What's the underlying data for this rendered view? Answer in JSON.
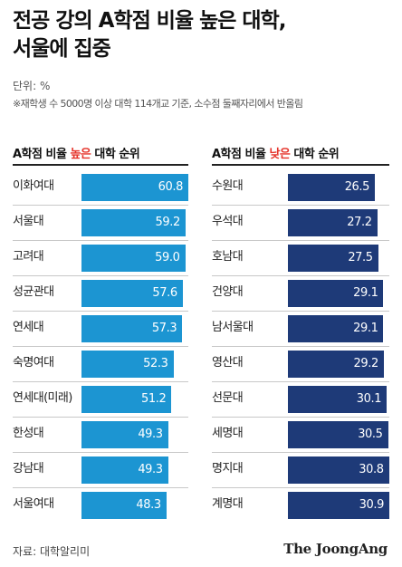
{
  "title_line1": "전공 강의 A학점 비율 높은 대학,",
  "title_line2": "서울에 집중",
  "unit": "단위: %",
  "note": "※재학생 수 5000명 이상 대학 114개교 기준, 소수점 둘째자리에서 반올림",
  "source": "자료: 대학알리미",
  "logo_text": "The JoongAng",
  "colors": {
    "left_bar": "#1c95d2",
    "right_bar": "#1e3a78",
    "highlight": "#e5332a"
  },
  "chart_data": [
    {
      "type": "bar",
      "orientation": "horizontal",
      "title_parts": [
        "A학점 비율 ",
        "높은",
        " 대학 순위"
      ],
      "categories": [
        "이화여대",
        "서울대",
        "고려대",
        "성균관대",
        "연세대",
        "숙명여대",
        "연세대(미래)",
        "한성대",
        "강남대",
        "서울여대"
      ],
      "values": [
        60.8,
        59.2,
        59.0,
        57.6,
        57.3,
        52.3,
        51.2,
        49.3,
        49.3,
        48.3
      ],
      "value_labels": [
        "60.8",
        "59.2",
        "59.0",
        "57.6",
        "57.3",
        "52.3",
        "51.2",
        "49.3",
        "49.3",
        "48.3"
      ],
      "xlim": [
        0,
        60.8
      ],
      "grid": false
    },
    {
      "type": "bar",
      "orientation": "horizontal",
      "title_parts": [
        "A학점 비율 ",
        "낮은",
        " 대학 순위"
      ],
      "categories": [
        "수원대",
        "우석대",
        "호남대",
        "건양대",
        "남서울대",
        "영산대",
        "선문대",
        "세명대",
        "명지대",
        "계명대"
      ],
      "values": [
        26.5,
        27.2,
        27.5,
        29.1,
        29.1,
        29.2,
        30.1,
        30.5,
        30.8,
        30.9
      ],
      "value_labels": [
        "26.5",
        "27.2",
        "27.5",
        "29.1",
        "29.1",
        "29.2",
        "30.1",
        "30.5",
        "30.8",
        "30.9"
      ],
      "xlim": [
        0,
        30.9
      ],
      "grid": false
    }
  ]
}
